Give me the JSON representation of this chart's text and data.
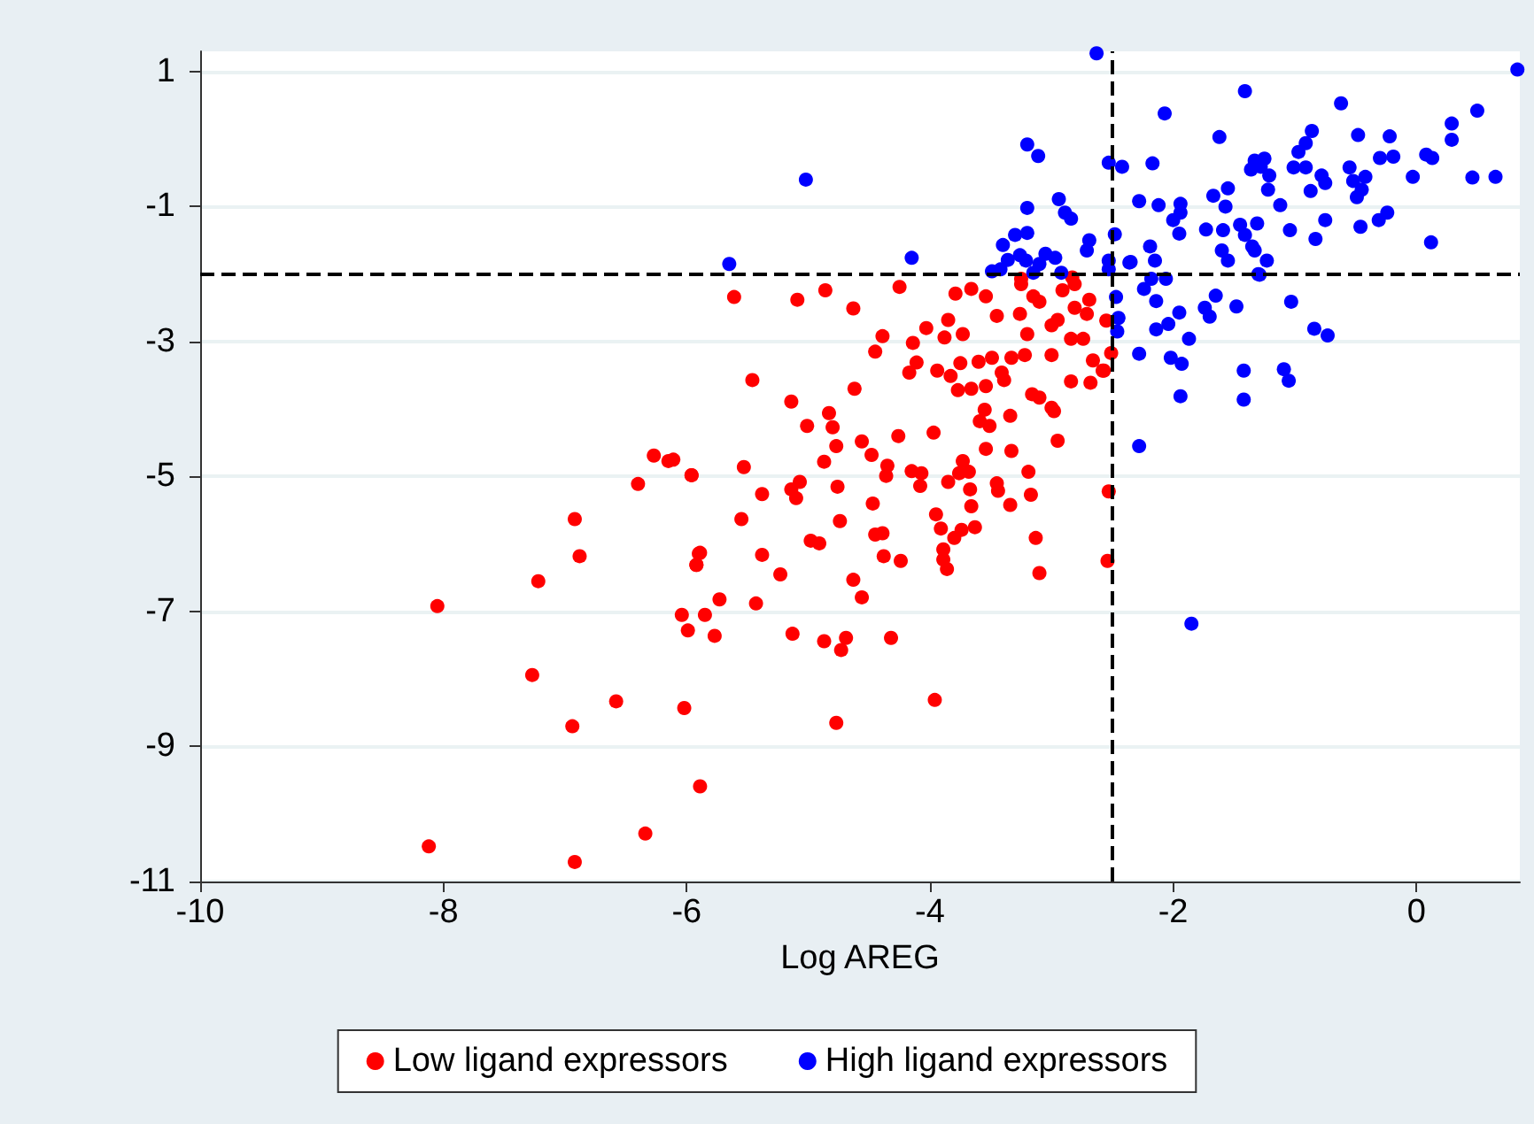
{
  "chart_data": {
    "type": "scatter",
    "xlabel": "Log AREG",
    "xlim": [
      -10,
      0.85
    ],
    "xticks": [
      -10,
      -8,
      -6,
      -4,
      -2,
      0
    ],
    "ylim": [
      -11,
      1.3
    ],
    "yticks": [
      1,
      -1,
      -3,
      -5,
      -7,
      -9,
      -11
    ],
    "grid": "y",
    "legend": "bottom",
    "marker": "circle",
    "ref_lines": [
      {
        "axis": "x",
        "value": -2.5,
        "color": "#000000",
        "line_style": "dashed"
      },
      {
        "axis": "y",
        "value": -2,
        "color": "#000000",
        "line_style": "dashed"
      }
    ],
    "series": [
      {
        "name": "Low ligand expressors",
        "color": "#ff0000",
        "x": [
          -6.27,
          -6.15,
          -5.96,
          -6.4,
          -6.92,
          -6.88,
          -7.22,
          -8.05,
          -6.04,
          -5.85,
          -5.99,
          -7.27,
          -6.58,
          -6.94,
          -6.02,
          -5.89,
          -6.34,
          -8.12,
          -6.92,
          -5.89,
          -5.92,
          -5.61,
          -5.09,
          -4.86,
          -4.63,
          -4.25,
          -3.79,
          -3.66,
          -3.54,
          -3.25,
          -3.15,
          -3.1,
          -2.91,
          -2.81,
          -2.69,
          -4.39,
          -4.03,
          -4.14,
          -3.85,
          -3.88,
          -3.73,
          -3.45,
          -3.26,
          -3.2,
          -3,
          -2.95,
          -2.81,
          -2.71,
          -2.84,
          -2.74,
          -2.55,
          -4.45,
          -4.17,
          -4.11,
          -3.94,
          -3.83,
          -3.75,
          -3.6,
          -3.49,
          -3.33,
          -3.22,
          -3.41,
          -3.39,
          -3.77,
          -3.66,
          -3.54,
          -3,
          -2.84,
          -2.68,
          -2.66,
          -2.57,
          -3.16,
          -3.1,
          -3,
          -2.98,
          -2.95,
          -3.55,
          -3.59,
          -3.51,
          -3.34,
          -3.54,
          -3.33,
          -5.46,
          -4.62,
          -5.14,
          -5.01,
          -4.83,
          -4.8,
          -4.77,
          -4.87,
          -4.56,
          -4.48,
          -4.26,
          -3.97,
          -4.35,
          -4.36,
          -4.15,
          -4.07,
          -4.08,
          -3.85,
          -3.73,
          -3.76,
          -3.68,
          -3.67,
          -3.66,
          -3.95,
          -3.91,
          -3.74,
          -3.63,
          -3.8,
          -3.89,
          -3.89,
          -3.86,
          -3.45,
          -3.44,
          -3.34,
          -3.19,
          -3.17,
          -3.13,
          -3.1,
          -2.54,
          -2.53,
          -4.47,
          -4.74,
          -4.76,
          -5.14,
          -5.07,
          -5.1,
          -5.38,
          -5.53,
          -5.55,
          -5.96,
          -6.11,
          -4.98,
          -4.91,
          -4.45,
          -4.39,
          -4.38,
          -4.24,
          -5.38,
          -5.23,
          -5.9,
          -5.92,
          -4.63,
          -4.56,
          -5.73,
          -5.43,
          -5.77,
          -5.13,
          -4.87,
          -4.73,
          -4.69,
          -4.32,
          -3.96,
          -4.77,
          -2.51,
          -2.58,
          -3.25,
          -2.83
        ],
        "values": [
          -4.69,
          -4.77,
          -4.98,
          -5.11,
          -5.63,
          -6.18,
          -6.55,
          -6.92,
          -7.05,
          -7.05,
          -7.28,
          -7.94,
          -8.33,
          -8.7,
          -8.43,
          -9.59,
          -10.29,
          -10.48,
          -10.71,
          -6.13,
          -6.31,
          -2.34,
          -2.38,
          -2.24,
          -2.51,
          -2.19,
          -2.29,
          -2.22,
          -2.33,
          -2.15,
          -2.33,
          -2.41,
          -2.24,
          -2.15,
          -2.38,
          -2.92,
          -2.8,
          -3.02,
          -2.68,
          -2.94,
          -2.89,
          -2.62,
          -2.59,
          -2.89,
          -2.76,
          -2.68,
          -2.5,
          -2.59,
          -2.96,
          -2.96,
          -2.69,
          -3.15,
          -3.46,
          -3.31,
          -3.43,
          -3.51,
          -3.32,
          -3.3,
          -3.24,
          -3.24,
          -3.2,
          -3.46,
          -3.57,
          -3.72,
          -3.7,
          -3.66,
          -3.2,
          -3.59,
          -3.61,
          -3.28,
          -3.43,
          -3.78,
          -3.83,
          -3.98,
          -4.03,
          -4.47,
          -4.01,
          -4.18,
          -4.25,
          -4.1,
          -4.59,
          -4.62,
          -3.57,
          -3.7,
          -3.89,
          -4.25,
          -4.06,
          -4.27,
          -4.55,
          -4.78,
          -4.48,
          -4.68,
          -4.4,
          -4.35,
          -4.84,
          -4.99,
          -4.92,
          -4.95,
          -5.14,
          -5.08,
          -4.77,
          -4.95,
          -4.93,
          -5.19,
          -5.44,
          -5.56,
          -5.77,
          -5.79,
          -5.75,
          -5.91,
          -6.08,
          -6.23,
          -6.37,
          -5.1,
          -5.21,
          -5.42,
          -4.93,
          -5.27,
          -5.91,
          -6.43,
          -6.25,
          -5.22,
          -5.4,
          -5.66,
          -5.15,
          -5.19,
          -5.08,
          -5.32,
          -5.26,
          -4.86,
          -5.63,
          -4.98,
          -4.75,
          -5.95,
          -5.99,
          -5.86,
          -5.84,
          -6.18,
          -6.25,
          -6.16,
          -6.45,
          -6.14,
          -6.31,
          -6.53,
          -6.79,
          -6.82,
          -6.88,
          -7.36,
          -7.33,
          -7.44,
          -7.57,
          -7.39,
          -7.39,
          -8.31,
          -8.65,
          -3.17,
          -3.43,
          -2.07,
          -2.05
        ]
      },
      {
        "name": "High ligand expressors",
        "color": "#0000ff",
        "x": [
          -2.63,
          -3.2,
          -3.11,
          -5.02,
          -2.53,
          -2.42,
          -2.94,
          -2.89,
          -2.84,
          -3.2,
          -3.3,
          -3.2,
          -3.4,
          -3.26,
          -3.36,
          -3.21,
          -3.05,
          -2.97,
          -3.1,
          -2.69,
          -2.71,
          -2.48,
          -2.53,
          -2.53,
          -2.36,
          -3.49,
          -3.42,
          -3.15,
          -2.92,
          -5.65,
          -4.15,
          0.83,
          -1.41,
          -2.07,
          -0.62,
          0.5,
          0.29,
          0.29,
          -1.62,
          -0.86,
          -0.91,
          -0.97,
          -0.48,
          -0.22,
          -2.17,
          -1.33,
          -1.25,
          -1.36,
          -1.21,
          -1.28,
          -1.01,
          -0.91,
          -0.78,
          -0.75,
          -0.55,
          -0.3,
          -0.19,
          0.08,
          0.13,
          -0.03,
          0.46,
          0.65,
          -0.52,
          -0.42,
          -0.45,
          -0.49,
          -1.22,
          -0.87,
          -1.67,
          -1.55,
          -1.57,
          -2.28,
          -2.12,
          -1.94,
          -1.94,
          -2,
          -1.95,
          -1.73,
          -1.59,
          -1.45,
          -1.41,
          -1.31,
          -1.12,
          -1.04,
          -0.75,
          -0.83,
          -0.46,
          -0.31,
          -0.24,
          0.12,
          -2.19,
          -2.15,
          -2.35,
          -1.35,
          -1.33,
          -1.6,
          -1.55,
          -1.23,
          -1.3,
          -2.18,
          -2.06,
          -1.29,
          -2.24,
          -2.47,
          -2.14,
          -2.45,
          -2.46,
          -1.95,
          -2.04,
          -2.14,
          -1.87,
          -1.74,
          -1.7,
          -1.65,
          -1.48,
          -1.03,
          -0.84,
          -0.73,
          -2.28,
          -2.02,
          -1.93,
          -1.42,
          -1.09,
          -1.05,
          -1.94,
          -1.42,
          -2.28,
          -1.85
        ],
        "values": [
          1.27,
          -0.08,
          -0.25,
          -0.6,
          -0.35,
          -0.41,
          -0.89,
          -1.09,
          -1.18,
          -1.02,
          -1.42,
          -1.39,
          -1.57,
          -1.72,
          -1.79,
          -1.8,
          -1.7,
          -1.76,
          -1.85,
          -1.5,
          -1.65,
          -1.41,
          -1.8,
          -1.93,
          -1.83,
          -1.96,
          -1.93,
          -1.98,
          -1.98,
          -1.85,
          -1.76,
          1.03,
          0.71,
          0.38,
          0.53,
          0.42,
          0.23,
          -0.01,
          0.03,
          0.12,
          -0.06,
          -0.19,
          0.06,
          0.04,
          -0.36,
          -0.32,
          -0.29,
          -0.45,
          -0.54,
          -0.41,
          -0.42,
          -0.42,
          -0.54,
          -0.65,
          -0.42,
          -0.28,
          -0.26,
          -0.23,
          -0.28,
          -0.56,
          -0.57,
          -0.56,
          -0.62,
          -0.56,
          -0.75,
          -0.86,
          -0.75,
          -0.77,
          -0.84,
          -0.73,
          -1,
          -0.92,
          -0.98,
          -0.96,
          -1.09,
          -1.2,
          -1.4,
          -1.34,
          -1.35,
          -1.27,
          -1.42,
          -1.25,
          -0.98,
          -1.35,
          -1.2,
          -1.48,
          -1.3,
          -1.2,
          -1.09,
          -1.53,
          -1.59,
          -1.8,
          -1.82,
          -1.59,
          -1.65,
          -1.65,
          -1.8,
          -1.8,
          -2,
          -2.07,
          -2.07,
          -2.01,
          -2.22,
          -2.34,
          -2.4,
          -2.65,
          -2.85,
          -2.57,
          -2.74,
          -2.82,
          -2.96,
          -2.5,
          -2.63,
          -2.32,
          -2.48,
          -2.41,
          -2.81,
          -2.91,
          -3.18,
          -3.24,
          -3.33,
          -3.43,
          -3.41,
          -3.58,
          -3.81,
          -3.86,
          -4.55,
          -7.18
        ]
      }
    ]
  }
}
